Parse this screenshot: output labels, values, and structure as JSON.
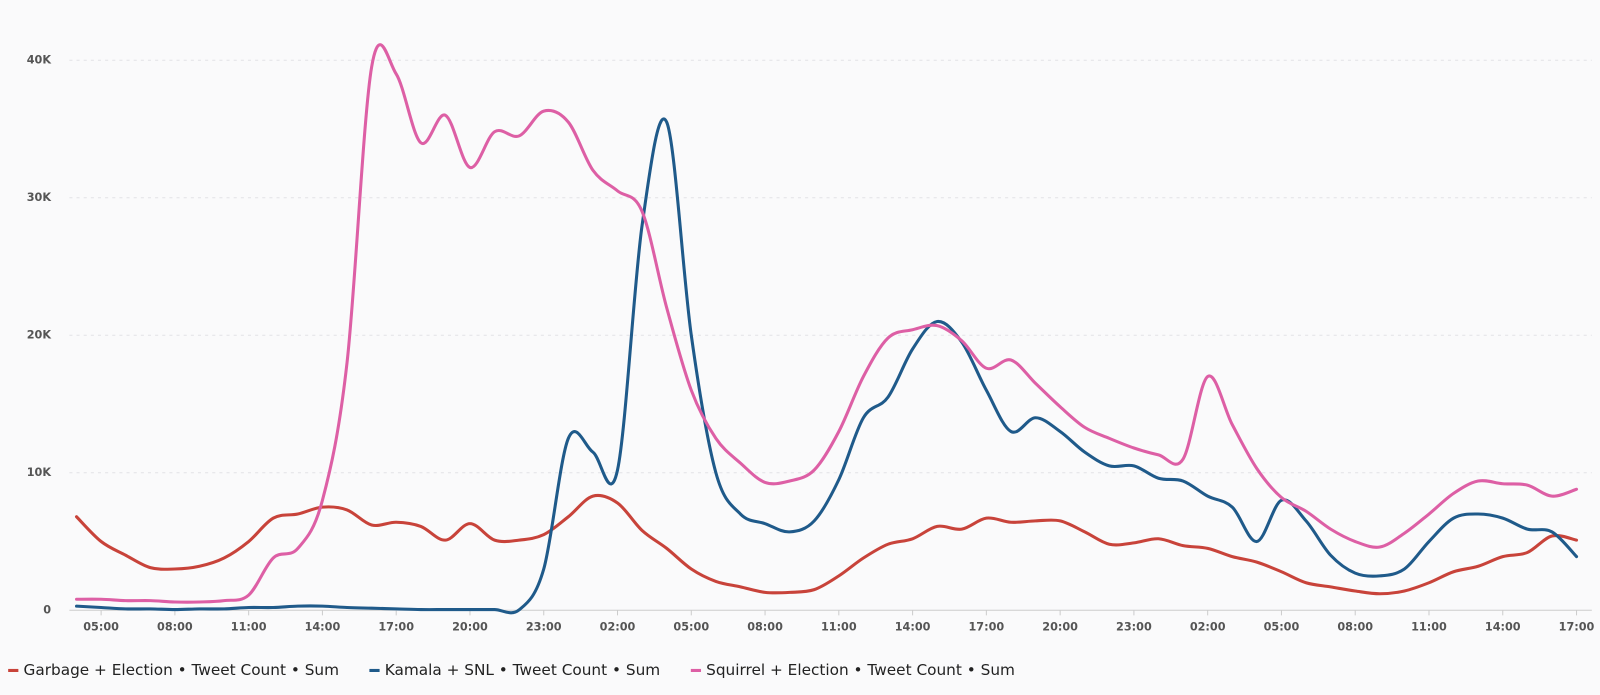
{
  "chart_data": {
    "type": "line",
    "categories": [
      null,
      "05:00",
      null,
      null,
      "08:00",
      null,
      null,
      "11:00",
      null,
      null,
      "14:00",
      null,
      null,
      "17:00",
      null,
      null,
      "20:00",
      null,
      null,
      "23:00",
      null,
      null,
      "02:00",
      null,
      null,
      "05:00",
      null,
      null,
      "08:00",
      null,
      null,
      "11:00",
      null,
      null,
      "14:00",
      null,
      null,
      "17:00",
      null,
      null,
      "20:00",
      null,
      null,
      "23:00",
      null,
      null,
      "02:00",
      null,
      null,
      "05:00",
      null,
      null,
      "08:00",
      null,
      null,
      "11:00",
      null,
      null,
      "14:00",
      null,
      null,
      "17:00"
    ],
    "series": [
      {
        "name": "Garbage + Election • Tweet Count • Sum",
        "color": "#c8433a",
        "values": [
          6800,
          5000,
          4000,
          3100,
          3000,
          3200,
          3800,
          5000,
          6700,
          7000,
          7500,
          7300,
          6200,
          6400,
          6100,
          5100,
          6300,
          5100,
          5100,
          5500,
          6800,
          8300,
          7800,
          5800,
          4500,
          3000,
          2100,
          1700,
          1300,
          1300,
          1500,
          2500,
          3800,
          4800,
          5200,
          6100,
          5900,
          6700,
          6400,
          6500,
          6500,
          5700,
          4800,
          4900,
          5200,
          4700,
          4500,
          3900,
          3500,
          2800,
          2000,
          1700,
          1400,
          1200,
          1400,
          2000,
          2800,
          3200,
          3900,
          4200,
          5400,
          5100
        ]
      },
      {
        "name": "Kamala + SNL • Tweet Count • Sum",
        "color": "#1f5a8a",
        "values": [
          300,
          200,
          100,
          100,
          50,
          100,
          100,
          200,
          200,
          300,
          300,
          200,
          150,
          100,
          50,
          50,
          50,
          50,
          30,
          3000,
          12500,
          11500,
          10200,
          28000,
          35500,
          20000,
          10000,
          7000,
          6300,
          5700,
          6500,
          9500,
          14000,
          15500,
          19000,
          21000,
          19500,
          16000,
          13000,
          14000,
          13000,
          11500,
          10500,
          10500,
          9600,
          9400,
          8300,
          7500,
          5000,
          8000,
          6500,
          4000,
          2700,
          2500,
          3000,
          5000,
          6700,
          7000,
          6700,
          5900,
          5700,
          3900
        ]
      },
      {
        "name": "Squirrel + Election • Tweet Count • Sum",
        "color": "#dd5fa5",
        "values": [
          800,
          800,
          700,
          700,
          600,
          600,
          700,
          1100,
          3800,
          4500,
          8000,
          18000,
          39500,
          39000,
          34000,
          36000,
          32200,
          34800,
          34500,
          36300,
          35500,
          32000,
          30500,
          29000,
          22000,
          16000,
          12500,
          10700,
          9300,
          9400,
          10200,
          13000,
          17000,
          19800,
          20400,
          20700,
          19600,
          17600,
          18200,
          16500,
          14800,
          13300,
          12500,
          11800,
          11300,
          11000,
          17000,
          13500,
          10300,
          8200,
          7200,
          5900,
          5000,
          4600,
          5600,
          7000,
          8500,
          9400,
          9200,
          9100,
          8300,
          8800
        ]
      }
    ],
    "ylim": [
      0,
      40000
    ],
    "yticks": [
      {
        "value": 0,
        "label": "0"
      },
      {
        "value": 10000,
        "label": "10K"
      },
      {
        "value": 20000,
        "label": "20K"
      },
      {
        "value": 30000,
        "label": "30K"
      },
      {
        "value": 40000,
        "label": "40K"
      }
    ],
    "grid": true
  }
}
